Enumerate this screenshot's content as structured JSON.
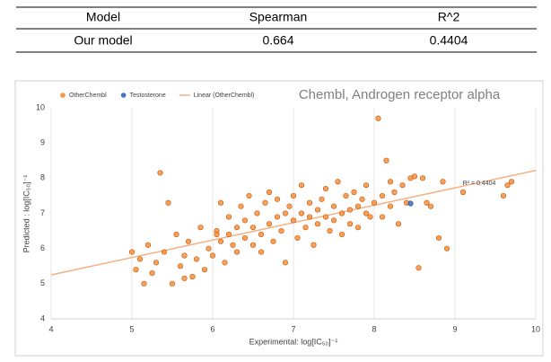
{
  "table": {
    "header": [
      "Model",
      "Spearman",
      "R^2"
    ],
    "rows": [
      [
        "Our model",
        0.664,
        0.4404
      ]
    ]
  },
  "chart_data": {
    "type": "scatter",
    "title": "Chembl, Androgen receptor alpha",
    "x_label": "Experimental: log[IC₅₀]⁻¹",
    "y_label": "Predicted : log[IC₅₀]⁻¹",
    "xlim": [
      4,
      10
    ],
    "ylim": [
      4,
      10
    ],
    "xticks": [
      4,
      5,
      6,
      7,
      8,
      9,
      10
    ],
    "yticks": [
      4,
      5,
      6,
      7,
      8,
      9,
      10
    ],
    "grid": "x",
    "legend": "top-left",
    "series": [
      {
        "name": "OtherChembl",
        "color": "#f79646",
        "x": [
          5.0,
          5.05,
          5.1,
          5.15,
          5.2,
          5.25,
          5.3,
          5.35,
          5.4,
          5.45,
          5.5,
          5.55,
          5.6,
          5.65,
          5.7,
          5.75,
          5.8,
          5.85,
          5.9,
          5.95,
          6.0,
          6.05,
          6.1,
          6.1,
          6.15,
          6.2,
          6.2,
          6.25,
          6.3,
          6.3,
          6.35,
          6.4,
          6.4,
          6.45,
          6.5,
          6.5,
          6.55,
          6.6,
          6.6,
          6.65,
          6.7,
          6.7,
          6.75,
          6.8,
          6.8,
          6.85,
          6.9,
          6.9,
          6.95,
          7.0,
          7.0,
          7.05,
          7.1,
          7.1,
          7.15,
          7.2,
          7.2,
          7.25,
          7.3,
          7.3,
          7.35,
          7.4,
          7.4,
          7.45,
          7.5,
          7.5,
          7.55,
          7.6,
          7.6,
          7.65,
          7.7,
          7.7,
          7.75,
          7.8,
          7.8,
          7.85,
          7.9,
          7.9,
          7.95,
          8.0,
          8.05,
          8.1,
          8.1,
          8.15,
          8.2,
          8.2,
          8.25,
          8.3,
          8.35,
          8.4,
          8.45,
          8.5,
          8.55,
          8.6,
          8.65,
          8.7,
          8.8,
          8.85,
          8.9,
          9.1,
          9.6,
          9.65,
          9.7,
          5.65,
          6.05
        ],
        "values": [
          5.9,
          5.4,
          5.7,
          5.0,
          6.1,
          5.3,
          5.6,
          8.15,
          5.9,
          7.3,
          5.0,
          6.4,
          5.5,
          5.8,
          6.2,
          5.2,
          5.7,
          6.6,
          5.4,
          6.0,
          5.8,
          6.5,
          6.2,
          7.3,
          5.6,
          6.4,
          6.9,
          6.1,
          6.6,
          5.9,
          7.2,
          6.3,
          6.8,
          7.5,
          6.1,
          6.6,
          7.0,
          6.4,
          5.9,
          7.3,
          6.7,
          7.6,
          6.2,
          6.9,
          7.4,
          6.5,
          7.0,
          5.6,
          7.2,
          6.8,
          7.5,
          6.3,
          7.0,
          7.8,
          6.6,
          6.9,
          7.3,
          6.1,
          7.1,
          6.7,
          7.4,
          6.9,
          7.7,
          6.5,
          7.2,
          6.8,
          7.9,
          7.0,
          6.4,
          7.5,
          7.1,
          6.7,
          7.6,
          7.2,
          6.6,
          7.4,
          7.0,
          7.8,
          6.9,
          7.3,
          9.7,
          7.5,
          6.9,
          8.5,
          7.2,
          7.9,
          7.6,
          6.7,
          7.8,
          7.3,
          8.0,
          8.05,
          5.45,
          8.0,
          7.3,
          7.2,
          6.3,
          7.9,
          6.0,
          7.6,
          7.5,
          7.8,
          7.9,
          5.15,
          6.4
        ]
      },
      {
        "name": "Testosterone",
        "color": "#4472c4",
        "x": [
          8.45
        ],
        "values": [
          7.28
        ]
      }
    ],
    "trendline": {
      "name": "Linear (OtherChembl)",
      "color": "#f4b183",
      "x": [
        4,
        10
      ],
      "values": [
        5.25,
        8.22
      ]
    },
    "annotation": "R² = 0.4404"
  }
}
